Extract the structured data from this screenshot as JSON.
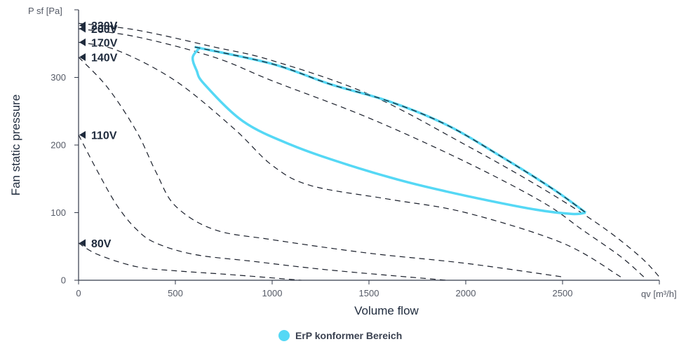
{
  "chart_data": {
    "type": "line",
    "xlabel": "Volume flow",
    "ylabel": "Fan static pressure",
    "x_unit": "qv [m³/h]",
    "y_unit": "P sf [Pa]",
    "xlim": [
      0,
      3000
    ],
    "ylim": [
      0,
      400
    ],
    "x_ticks": [
      0,
      500,
      1000,
      1500,
      2000,
      2500
    ],
    "y_ticks": [
      0,
      100,
      200,
      300
    ],
    "legend_position": "bottom-center",
    "series": [
      {
        "name": "230V",
        "label_y": 377,
        "x": [
          0,
          300,
          700,
          1000,
          1500,
          2000,
          2400,
          2700,
          2900,
          3000
        ],
        "y": [
          380,
          370,
          345,
          325,
          275,
          200,
          135,
          80,
          35,
          5
        ]
      },
      {
        "name": "200V",
        "label_y": 372,
        "x": [
          0,
          300,
          700,
          1000,
          1500,
          2000,
          2400,
          2600,
          2800,
          2920
        ],
        "y": [
          372,
          360,
          330,
          295,
          240,
          175,
          115,
          75,
          35,
          5
        ]
      },
      {
        "name": "170V",
        "label_y": 352,
        "x": [
          0,
          200,
          500,
          800,
          1000,
          1200,
          1600,
          2000,
          2500,
          2800
        ],
        "y": [
          352,
          340,
          295,
          225,
          170,
          140,
          120,
          100,
          55,
          5
        ]
      },
      {
        "name": "140V",
        "label_y": 330,
        "x": [
          0,
          150,
          300,
          400,
          500,
          700,
          1000,
          1500,
          2000,
          2500
        ],
        "y": [
          330,
          285,
          220,
          160,
          110,
          75,
          60,
          40,
          25,
          5
        ]
      },
      {
        "name": "110V",
        "label_y": 215,
        "x": [
          0,
          100,
          200,
          300,
          400,
          600,
          900,
          1300,
          1900
        ],
        "y": [
          215,
          160,
          110,
          75,
          55,
          38,
          28,
          15,
          0
        ]
      },
      {
        "name": "80V",
        "label_y": 55,
        "x": [
          0,
          100,
          300,
          500,
          800,
          1150
        ],
        "y": [
          55,
          38,
          20,
          14,
          8,
          0
        ]
      }
    ],
    "erp_region": {
      "name": "ErP konformer Bereich",
      "color": "#55d8f5",
      "upper": {
        "x": [
          600,
          1000,
          1300,
          1600,
          1900,
          2200,
          2450,
          2620
        ],
        "y": [
          345,
          320,
          290,
          265,
          230,
          180,
          135,
          100
        ]
      },
      "lower": {
        "x": [
          2620,
          2550,
          2350,
          2000,
          1700,
          1400,
          1100,
          850,
          650,
          610,
          590,
          630
        ],
        "y": [
          100,
          98,
          105,
          125,
          145,
          170,
          200,
          235,
          290,
          310,
          330,
          345
        ]
      }
    }
  },
  "legend": {
    "label": "ErP konformer Bereich",
    "color": "#55d8f5"
  }
}
